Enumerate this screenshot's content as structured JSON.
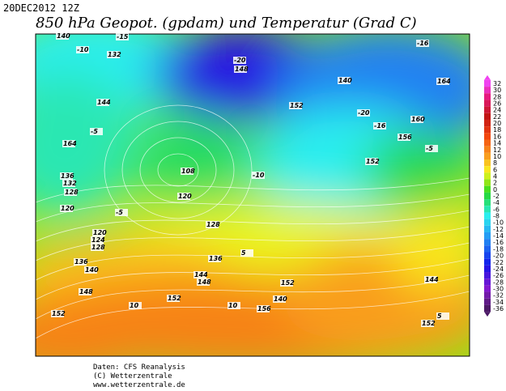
{
  "header": {
    "date": "20DEC2012 12Z",
    "title": "850 hPa Geopot. (gpdam) und  Temperatur (Grad C)"
  },
  "colorbar": {
    "ticks": [
      32,
      30,
      28,
      26,
      24,
      22,
      20,
      18,
      16,
      14,
      12,
      10,
      8,
      6,
      4,
      2,
      0,
      -2,
      -4,
      -6,
      -8,
      -10,
      -12,
      -14,
      -16,
      -18,
      -20,
      -22,
      -24,
      -26,
      -28,
      -30,
      -32,
      -34,
      -36
    ]
  },
  "map_labels": [
    "140",
    "132",
    "-15",
    "-10",
    "144",
    "-5",
    "164",
    "136",
    "132",
    "128",
    "120",
    "-5",
    "120",
    "124",
    "128",
    "136",
    "140",
    "148",
    "152",
    "10",
    "152",
    "108",
    "120",
    "128",
    "136",
    "144",
    "148",
    "5",
    "140",
    "152",
    "156",
    "10",
    "-10",
    "-20",
    "-16",
    "160",
    "156",
    "152",
    "-20",
    "148",
    "140",
    "152",
    "-5",
    "144",
    "152",
    "5",
    "-16",
    "164"
  ],
  "footer": [
    "Daten: CFS Reanalysis",
    "(C) Wetterzentrale",
    "www.wetterzentrale.de"
  ]
}
